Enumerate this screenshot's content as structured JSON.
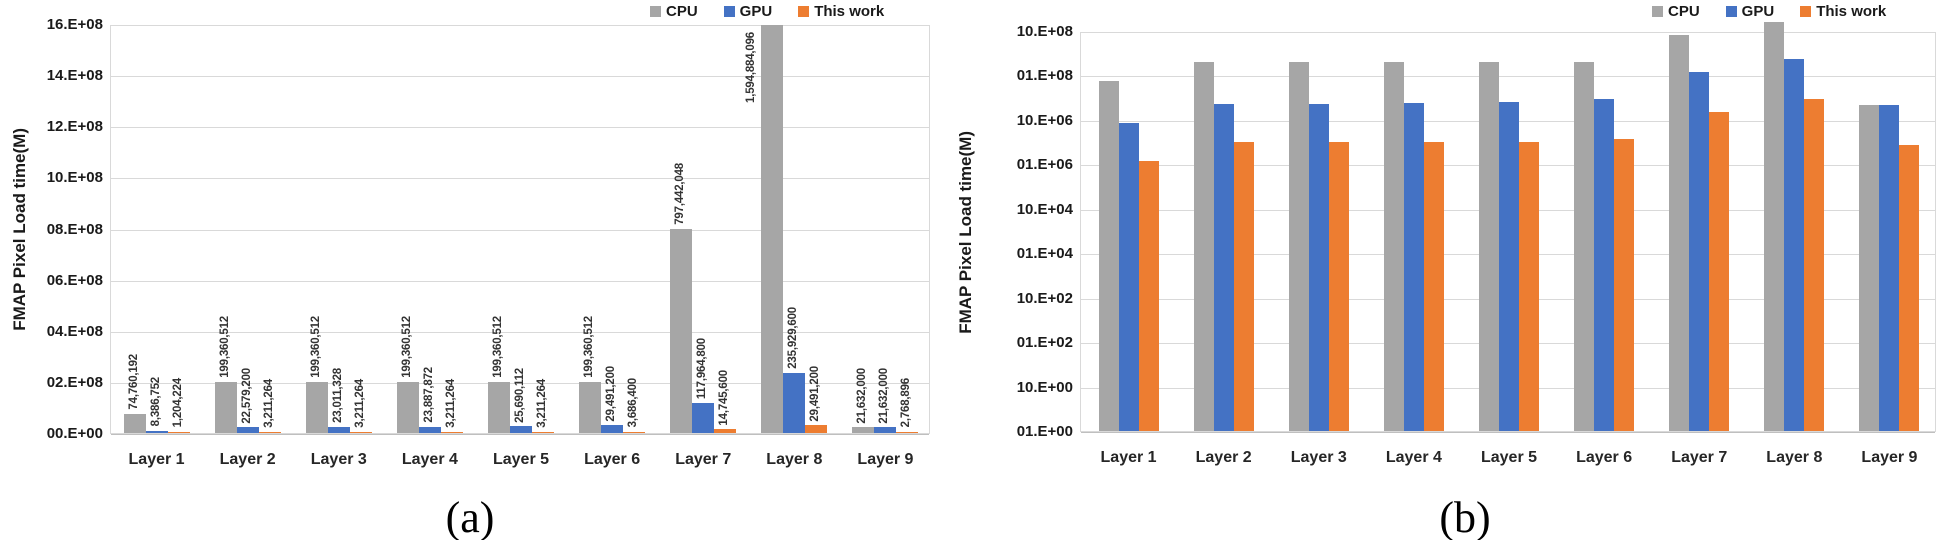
{
  "legend": {
    "items": [
      {
        "label": "CPU",
        "color": "#A6A6A6"
      },
      {
        "label": "GPU",
        "color": "#4472C4"
      },
      {
        "label": "This work",
        "color": "#ED7D31"
      }
    ]
  },
  "chart_data": [
    {
      "id": "a",
      "type": "bar",
      "scale": "linear",
      "title": "",
      "ylabel": "FMAP Pixel Load time(M)",
      "xlabel": "",
      "caption": "(a)",
      "ylim": [
        0,
        1600000000
      ],
      "grid": true,
      "legend_position": "top-right",
      "data_labels": true,
      "yticks": [
        "16.E+08",
        "14.E+08",
        "12.E+08",
        "10.E+08",
        "08.E+08",
        "06.E+08",
        "04.E+08",
        "02.E+08",
        "00.E+00"
      ],
      "categories": [
        "Layer 1",
        "Layer 2",
        "Layer 3",
        "Layer 4",
        "Layer 5",
        "Layer 6",
        "Layer 7",
        "Layer 8",
        "Layer 9"
      ],
      "series": [
        {
          "name": "CPU",
          "color": "#A6A6A6",
          "values": [
            74760192,
            199360512,
            199360512,
            199360512,
            199360512,
            199360512,
            797442048,
            1594884096,
            21632000
          ],
          "labels": [
            "74,760,192",
            "199,360,512",
            "199,360,512",
            "199,360,512",
            "199,360,512",
            "199,360,512",
            "797,442,048",
            "1,594,884,096",
            "21,632,000"
          ]
        },
        {
          "name": "GPU",
          "color": "#4472C4",
          "values": [
            8386752,
            22579200,
            23011328,
            23887872,
            25690112,
            29491200,
            117964800,
            235929600,
            21632000
          ],
          "labels": [
            "8,386,752",
            "22,579,200",
            "23,011,328",
            "23,887,872",
            "25,690,112",
            "29,491,200",
            "117,964,800",
            "235,929,600",
            "21,632,000"
          ]
        },
        {
          "name": "This work",
          "color": "#ED7D31",
          "values": [
            1204224,
            3211264,
            3211264,
            3211264,
            3211264,
            3686400,
            14745600,
            29491200,
            2768896
          ],
          "labels": [
            "1,204,224",
            "3,211,264",
            "3,211,264",
            "3,211,264",
            "3,211,264",
            "3,686,400",
            "14,745,600",
            "29,491,200",
            "2,768,896"
          ]
        }
      ]
    },
    {
      "id": "b",
      "type": "bar",
      "scale": "log",
      "title": "",
      "ylabel": "FMAP Pixel Load time(M)",
      "xlabel": "",
      "caption": "(b)",
      "ylim": [
        1,
        1000000000
      ],
      "grid": true,
      "legend_position": "top-right",
      "data_labels": false,
      "yticks": [
        "10.E+08",
        "01.E+08",
        "10.E+06",
        "01.E+06",
        "10.E+04",
        "01.E+04",
        "10.E+02",
        "01.E+02",
        "10.E+00",
        "01.E+00"
      ],
      "categories": [
        "Layer 1",
        "Layer 2",
        "Layer 3",
        "Layer 4",
        "Layer 5",
        "Layer 6",
        "Layer 7",
        "Layer 8",
        "Layer 9"
      ],
      "series": [
        {
          "name": "CPU",
          "color": "#A6A6A6",
          "values": [
            74760192,
            199360512,
            199360512,
            199360512,
            199360512,
            199360512,
            797442048,
            1594884096,
            21632000
          ]
        },
        {
          "name": "GPU",
          "color": "#4472C4",
          "values": [
            8386752,
            22579200,
            23011328,
            23887872,
            25690112,
            29491200,
            117964800,
            235929600,
            21632000
          ]
        },
        {
          "name": "This work",
          "color": "#ED7D31",
          "values": [
            1204224,
            3211264,
            3211264,
            3211264,
            3211264,
            3686400,
            14745600,
            29491200,
            2768896
          ]
        }
      ]
    }
  ]
}
